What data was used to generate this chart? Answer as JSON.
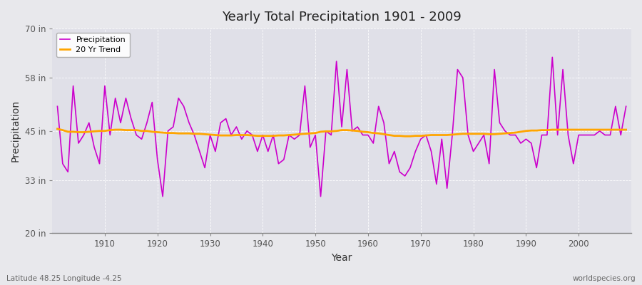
{
  "title": "Yearly Total Precipitation 1901 - 2009",
  "xlabel": "Year",
  "ylabel": "Precipitation",
  "lat_lon_label": "Latitude 48.25 Longitude -4.25",
  "watermark": "worldspecies.org",
  "ylim": [
    20,
    70
  ],
  "yticks": [
    20,
    33,
    45,
    58,
    70
  ],
  "ytick_labels": [
    "20 in",
    "33 in",
    "45 in",
    "58 in",
    "70 in"
  ],
  "xlim": [
    1900,
    2010
  ],
  "start_year": 1901,
  "precip_color": "#CC00CC",
  "trend_color": "#FFA500",
  "bg_color": "#E8E8EC",
  "plot_bg_color": "#E0E0E8",
  "grid_color": "#FFFFFF",
  "precip_linewidth": 1.2,
  "trend_linewidth": 2.0,
  "precipitation": [
    51,
    37,
    35,
    56,
    42,
    44,
    47,
    41,
    37,
    56,
    44,
    53,
    47,
    53,
    48,
    44,
    43,
    47,
    52,
    38,
    29,
    45,
    46,
    53,
    51,
    47,
    44,
    40,
    36,
    44,
    40,
    47,
    48,
    44,
    46,
    43,
    45,
    44,
    40,
    44,
    40,
    44,
    37,
    38,
    44,
    43,
    44,
    56,
    41,
    44,
    29,
    45,
    44,
    62,
    46,
    60,
    45,
    46,
    44,
    44,
    42,
    51,
    47,
    37,
    40,
    35,
    34,
    36,
    40,
    43,
    44,
    40,
    32,
    43,
    31,
    44,
    60,
    58,
    44,
    40,
    42,
    44,
    37,
    60,
    47,
    45,
    44,
    44,
    42,
    43,
    42,
    36,
    44,
    44,
    63,
    44,
    60,
    44,
    37,
    44,
    44,
    44,
    44,
    45,
    44,
    44,
    51,
    44,
    51
  ],
  "trend": [
    45.5,
    45.2,
    44.8,
    44.8,
    44.7,
    44.7,
    44.8,
    44.9,
    45.0,
    45.0,
    45.2,
    45.3,
    45.3,
    45.2,
    45.2,
    45.2,
    45.0,
    45.0,
    44.8,
    44.7,
    44.6,
    44.5,
    44.5,
    44.4,
    44.4,
    44.4,
    44.3,
    44.3,
    44.2,
    44.1,
    44.0,
    43.9,
    43.9,
    43.9,
    44.0,
    44.0,
    44.0,
    43.9,
    43.8,
    43.8,
    43.8,
    43.8,
    43.9,
    43.9,
    44.0,
    44.1,
    44.2,
    44.3,
    44.4,
    44.5,
    44.8,
    44.9,
    44.9,
    45.0,
    45.2,
    45.2,
    45.1,
    45.0,
    44.8,
    44.7,
    44.5,
    44.4,
    44.2,
    44.0,
    43.8,
    43.8,
    43.7,
    43.7,
    43.8,
    43.8,
    43.9,
    44.0,
    44.0,
    44.0,
    44.0,
    44.1,
    44.2,
    44.3,
    44.3,
    44.3,
    44.3,
    44.3,
    44.2,
    44.2,
    44.3,
    44.4,
    44.5,
    44.6,
    44.8,
    45.0,
    45.1,
    45.1,
    45.2,
    45.2,
    45.3,
    45.3,
    45.3,
    45.3,
    45.3,
    45.3,
    45.3,
    45.3,
    45.3,
    45.3,
    45.3,
    45.3,
    45.3,
    45.3,
    45.3
  ]
}
